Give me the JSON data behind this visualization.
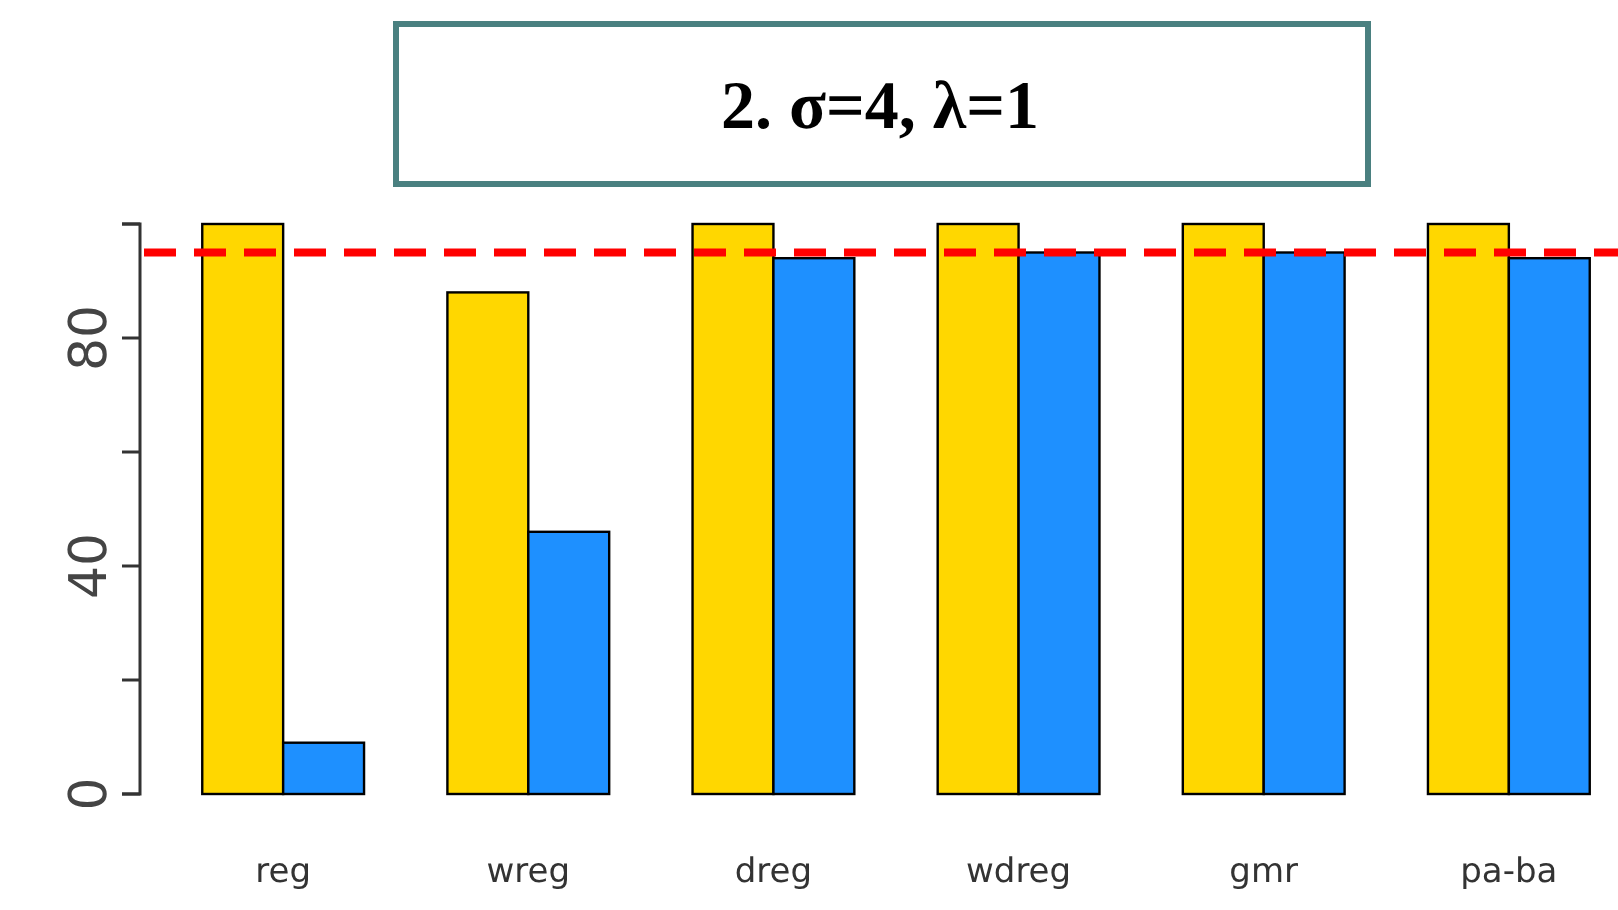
{
  "chart_data": {
    "type": "bar",
    "title": "2.  σ=4, λ=1",
    "categories": [
      "reg",
      "wreg",
      "dreg",
      "wdreg",
      "gmr",
      "pa-ba"
    ],
    "series": [
      {
        "color": "#ffd700",
        "values": [
          100,
          88,
          100,
          100,
          100,
          100
        ]
      },
      {
        "color": "#1e90ff",
        "values": [
          9,
          46,
          94,
          95,
          95,
          94
        ]
      }
    ],
    "ylim": [
      0,
      100
    ],
    "yticks": [
      0,
      {
        "value": 20,
        "label": null
      },
      40,
      {
        "value": 60,
        "label": null
      },
      80,
      {
        "value": 100,
        "label": null
      }
    ],
    "ref_lines": [
      {
        "axis": "y",
        "value": 95,
        "color": "#ff0000",
        "line_style": "dashed"
      }
    ],
    "grid": false
  }
}
